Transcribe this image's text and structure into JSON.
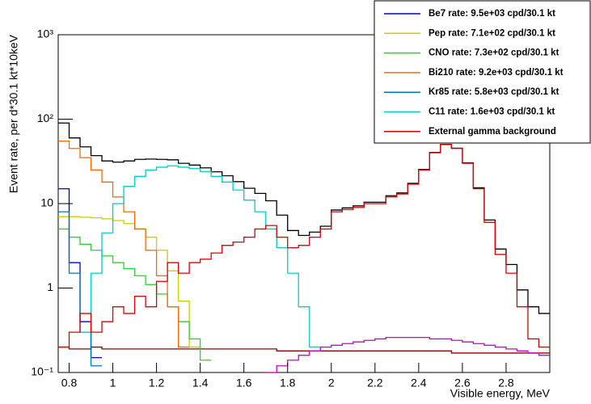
{
  "chart_data": {
    "type": "histogram",
    "log_y": true,
    "x_label": "Visible energy, MeV",
    "y_label": "Event rate, per d*30.1 kt*10keV",
    "xlim": [
      0.75,
      3.0
    ],
    "ylim": [
      0.1,
      1000
    ],
    "xticks": [
      0.8,
      1,
      1.2,
      1.4,
      1.6,
      1.8,
      2,
      2.2,
      2.4,
      2.6,
      2.8
    ],
    "yticks": [
      {
        "value": 0.1,
        "label": "10⁻¹"
      },
      1,
      10,
      {
        "value": 100,
        "label": "10²"
      },
      {
        "value": 1000,
        "label": "10³"
      }
    ],
    "x": [
      0.775,
      0.825,
      0.875,
      0.925,
      0.975,
      1.025,
      1.075,
      1.125,
      1.175,
      1.225,
      1.275,
      1.325,
      1.375,
      1.425,
      1.475,
      1.525,
      1.575,
      1.625,
      1.675,
      1.725,
      1.775,
      1.825,
      1.875,
      1.925,
      1.975,
      2.025,
      2.075,
      2.125,
      2.175,
      2.225,
      2.275,
      2.325,
      2.375,
      2.425,
      2.475,
      2.525,
      2.575,
      2.625,
      2.675,
      2.725,
      2.775,
      2.825,
      2.875,
      2.925,
      2.975
    ],
    "series": [
      {
        "color": "#000000",
        "values": [
          90,
          60,
          47,
          37,
          32,
          31,
          32,
          33.4,
          33.7,
          33.4,
          33,
          30,
          28.6,
          26.5,
          23.8,
          21.4,
          18.2,
          15.2,
          13.2,
          10.8,
          7.3,
          4.8,
          4.2,
          4.6,
          5.4,
          8.4,
          8.9,
          9.4,
          10.4,
          10.4,
          12.4,
          13.4,
          17.4,
          25.4,
          40.4,
          50.4,
          45.4,
          30.4,
          15.4,
          6.4,
          2.9,
          1.9,
          0.95,
          0.6,
          0.5
        ]
      },
      {
        "color": "#8b0000",
        "values": [
          0.2,
          0.19,
          0.19,
          0.2,
          0.19,
          0.19,
          0.19,
          0.19,
          0.19,
          0.19,
          0.19,
          0.19,
          0.19,
          0.19,
          0.19,
          0.19,
          0.19,
          0.19,
          0.19,
          0.19,
          0.18,
          0.18,
          0.18,
          0.18,
          0.18,
          0.18,
          0.18,
          0.18,
          0.18,
          0.18,
          0.18,
          0.18,
          0.18,
          0.18,
          0.18,
          0.18,
          0.17,
          0.17,
          0.17,
          0.17,
          0.17,
          0.17,
          0.17,
          0.17,
          0.17
        ]
      },
      {
        "color": "#cc00cc",
        "values": [
          null,
          null,
          null,
          null,
          null,
          null,
          null,
          null,
          null,
          null,
          null,
          null,
          null,
          null,
          null,
          null,
          null,
          null,
          null,
          0.1,
          0.12,
          0.14,
          0.16,
          0.18,
          0.2,
          0.21,
          0.22,
          0.23,
          0.24,
          0.25,
          0.26,
          0.26,
          0.26,
          0.26,
          0.25,
          0.25,
          0.24,
          0.23,
          0.22,
          0.21,
          0.2,
          0.19,
          0.18,
          0.17,
          0.16
        ]
      },
      {
        "name": "Be7 rate: 9.5e+03 cpd/30.1 kt",
        "color": "#0000cc",
        "values": [
          15,
          2,
          0.4,
          0.15,
          null,
          null,
          null,
          null,
          null,
          null,
          null,
          null,
          null,
          null,
          null,
          null,
          null,
          null,
          null,
          null,
          null,
          null,
          null,
          null,
          null,
          null,
          null,
          null,
          null,
          null,
          null,
          null,
          null,
          null,
          null,
          null,
          null,
          null,
          null,
          null,
          null,
          null,
          null,
          null,
          null
        ]
      },
      {
        "name": "Pep rate: 7.1e+02 cpd/30.1 kt",
        "color": "#cccc00",
        "values": [
          7,
          7,
          6.9,
          6.8,
          6.6,
          6.3,
          5.8,
          5,
          4,
          2.8,
          1.6,
          0.7,
          0.2,
          null,
          null,
          null,
          null,
          null,
          null,
          null,
          null,
          null,
          null,
          null,
          null,
          null,
          null,
          null,
          null,
          null,
          null,
          null,
          null,
          null,
          null,
          null,
          null,
          null,
          null,
          null,
          null,
          null,
          null,
          null,
          null
        ]
      },
      {
        "name": "CNO rate: 7.3e+02 cpd/30.1 kt",
        "color": "#33cc33",
        "values": [
          5,
          4,
          3.3,
          2.8,
          2.4,
          2,
          1.7,
          1.4,
          1.1,
          0.85,
          0.6,
          0.4,
          0.25,
          0.14,
          null,
          null,
          null,
          null,
          null,
          null,
          null,
          null,
          null,
          null,
          null,
          null,
          null,
          null,
          null,
          null,
          null,
          null,
          null,
          null,
          null,
          null,
          null,
          null,
          null,
          null,
          null,
          null,
          null,
          null,
          null
        ]
      },
      {
        "name": "Bi210 rate: 9.2e+03 cpd/30.1 kt",
        "color": "#ff6600",
        "values": [
          55,
          45,
          35,
          25,
          18,
          12,
          8,
          5,
          2.8,
          1.4,
          0.6,
          0.2,
          null,
          null,
          null,
          null,
          null,
          null,
          null,
          null,
          null,
          null,
          null,
          null,
          null,
          null,
          null,
          null,
          null,
          null,
          null,
          null,
          null,
          null,
          null,
          null,
          null,
          null,
          null,
          null,
          null,
          null,
          null,
          null,
          null
        ]
      },
      {
        "name": "Kr85 rate: 5.8e+03 cpd/30.1 kt",
        "color": "#0077aa",
        "values": [
          8,
          1.5,
          0.3,
          0.12,
          null,
          null,
          null,
          null,
          null,
          null,
          null,
          null,
          null,
          null,
          null,
          null,
          null,
          null,
          null,
          null,
          null,
          null,
          null,
          null,
          null,
          null,
          null,
          null,
          null,
          null,
          null,
          null,
          null,
          null,
          null,
          null,
          null,
          null,
          null,
          null,
          null,
          null,
          null,
          null,
          null
        ]
      },
      {
        "name": "C11 rate: 1.6e+03 cpd/30.1 kt",
        "color": "#00cccc",
        "values": [
          null,
          null,
          0.3,
          1.5,
          4.5,
          10,
          16,
          21,
          25,
          27,
          28,
          27,
          26,
          24,
          21,
          18,
          14.5,
          11,
          8,
          5,
          3,
          1.5,
          0.6,
          0.2,
          null,
          null,
          null,
          null,
          null,
          null,
          null,
          null,
          null,
          null,
          null,
          null,
          null,
          null,
          null,
          null,
          null,
          null,
          null,
          null,
          null
        ]
      },
      {
        "name": "External gamma background",
        "color": "#dd0000",
        "values": [
          0.2,
          0.3,
          0.5,
          0.3,
          0.4,
          0.6,
          0.5,
          0.8,
          0.6,
          1.2,
          2,
          1.5,
          2,
          2.2,
          2.6,
          3.2,
          3.5,
          4,
          5,
          5.5,
          4,
          3,
          3.2,
          4,
          5,
          8,
          8.5,
          9,
          10,
          10,
          12,
          13,
          17,
          25,
          40,
          50,
          45,
          30,
          15,
          6,
          2.5,
          1.5,
          0.6,
          0.25,
          0.2
        ]
      }
    ]
  }
}
